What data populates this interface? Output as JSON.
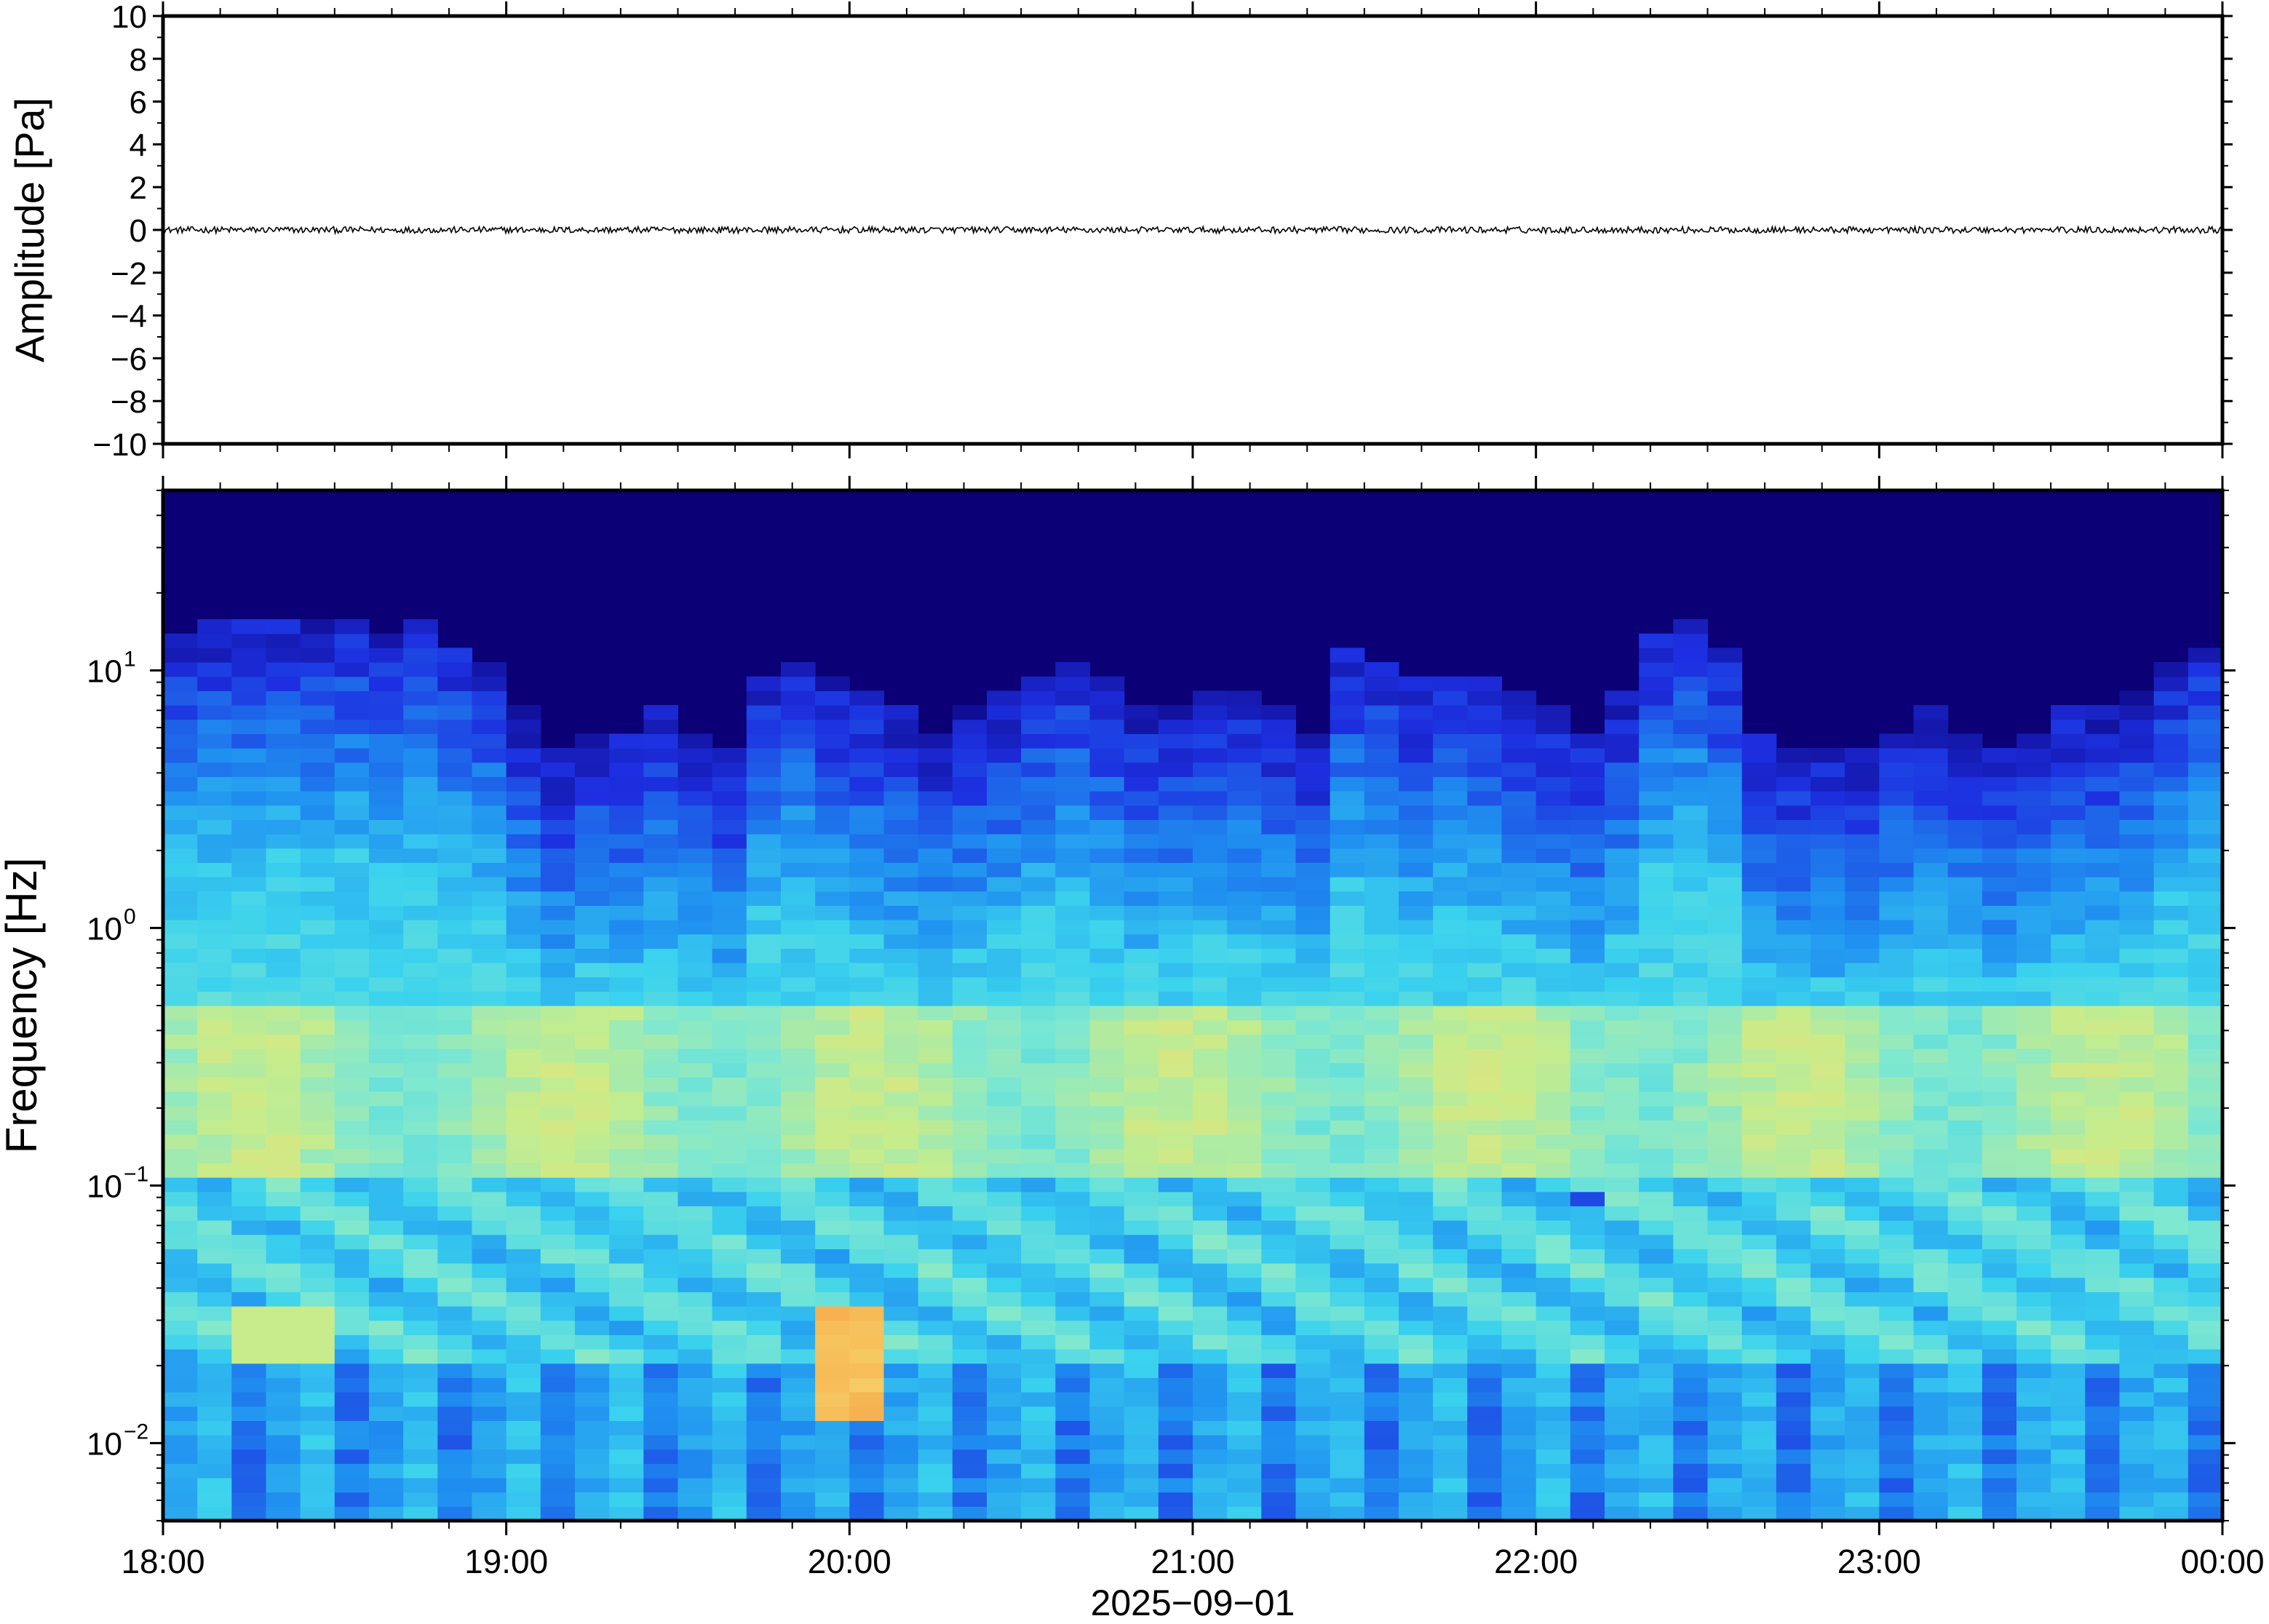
{
  "chart_data": [
    {
      "type": "line",
      "panel": "amplitude",
      "ylabel": "Amplitude [Pa]",
      "ylim": [
        -10,
        10
      ],
      "ytick_labels": [
        "10",
        "8",
        "6",
        "4",
        "2",
        "0",
        "−2",
        "−4",
        "−6",
        "−8",
        "−10"
      ],
      "ytick_values": [
        10,
        8,
        6,
        4,
        2,
        0,
        -2,
        -4,
        -6,
        -8,
        -10
      ],
      "xlim_hours": [
        18,
        24
      ],
      "trace_description_values": {
        "baseline": 0,
        "typical_peak_abs": 0.15
      },
      "grid": false
    },
    {
      "type": "heatmap",
      "panel": "spectrogram",
      "ylabel": "Frequency [Hz]",
      "yscale": "log",
      "ylim": [
        0.005,
        50
      ],
      "ytick_values": [
        0.01,
        0.1,
        1,
        10
      ],
      "ytick_labels": [
        {
          "base": "10",
          "exp": "−2"
        },
        {
          "base": "10",
          "exp": "−1"
        },
        {
          "base": "10",
          "exp": "0"
        },
        {
          "base": "10",
          "exp": "1"
        }
      ],
      "colormap": "jet",
      "colormap_stops": [
        "#0b0075",
        "#1d2fe0",
        "#1f8ff0",
        "#3ad2ee",
        "#7fe8d0",
        "#c6ec8c",
        "#f4de72",
        "#f7a94a"
      ],
      "time_columns": 60,
      "upper_cutoff_hz_per_column": [
        14,
        15,
        15,
        16,
        15,
        16,
        14,
        15,
        13,
        11,
        7,
        5,
        6,
        6,
        7,
        6,
        5,
        10,
        11,
        9,
        8,
        7,
        6,
        7,
        8,
        10,
        11,
        9,
        7,
        7,
        8,
        8,
        7,
        6,
        12,
        11,
        9,
        10,
        9,
        8,
        7,
        6,
        8,
        14,
        16,
        12,
        6,
        5,
        5,
        5,
        6,
        7,
        6,
        5,
        6,
        7,
        7,
        8,
        11,
        13
      ],
      "notable_features": [
        {
          "label": "high energy 0.02 Hz",
          "time": "20:00",
          "freq_hz": 0.02
        },
        {
          "label": "warm band",
          "freq_hz": [
            0.12,
            0.3
          ]
        }
      ],
      "grid": false
    }
  ],
  "x_axis": {
    "tick_labels": [
      "18:00",
      "19:00",
      "20:00",
      "21:00",
      "22:00",
      "23:00",
      "00:00"
    ],
    "date_label": "2025−09−01"
  }
}
